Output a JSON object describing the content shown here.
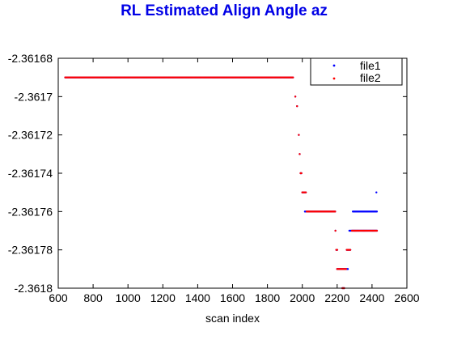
{
  "chart_data": {
    "type": "scatter",
    "title": "RL Estimated Align Angle az",
    "xlabel": "scan index",
    "ylabel": "",
    "xlim": [
      600,
      2600
    ],
    "ylim": [
      -2.3618,
      -2.36168
    ],
    "xticks": [
      600,
      800,
      1000,
      1200,
      1400,
      1600,
      1800,
      2000,
      2200,
      2400,
      2600
    ],
    "xtick_labels": [
      "600",
      "800",
      "1000",
      "1200",
      "1400",
      "1600",
      "1800",
      "2000",
      "2200",
      "2400",
      "2600"
    ],
    "yticks": [
      -2.36168,
      -2.3617,
      -2.36172,
      -2.36174,
      -2.36176,
      -2.36178,
      -2.3618
    ],
    "ytick_labels": [
      "-2.36168",
      "-2.3617",
      "-2.36172",
      "-2.36174",
      "-2.36176",
      "-2.36178",
      "-2.3618"
    ],
    "grid": false,
    "legend_position": "top-right",
    "series": [
      {
        "name": "file1",
        "color": "#0000ff",
        "marker": "dot",
        "runs": [
          {
            "x": [
              640,
              1950
            ],
            "y": -2.36169
          },
          {
            "x": [
              1960,
              1965
            ],
            "y": -2.3617
          },
          {
            "x": [
              1970,
              1975
            ],
            "y": -2.361705
          },
          {
            "x": [
              1980,
              1985
            ],
            "y": -2.36172
          },
          {
            "x": [
              1985,
              1990
            ],
            "y": -2.36173
          },
          {
            "x": [
              1990,
              2000
            ],
            "y": -2.36174
          },
          {
            "x": [
              2000,
              2025
            ],
            "y": -2.36175
          },
          {
            "x": [
              2015,
              2190
            ],
            "y": -2.36176
          },
          {
            "x": [
              2190,
              2195
            ],
            "y": -2.36177
          },
          {
            "x": [
              2195,
              2205
            ],
            "y": -2.36178
          },
          {
            "x": [
              2200,
              2265
            ],
            "y": -2.36179
          },
          {
            "x": [
              2230,
              2245
            ],
            "y": -2.3618
          },
          {
            "x": [
              2255,
              2280
            ],
            "y": -2.36178
          },
          {
            "x": [
              2270,
              2430
            ],
            "y": -2.36177
          },
          {
            "x": [
              2290,
              2430
            ],
            "y": -2.36176
          },
          {
            "x": [
              2425,
              2430
            ],
            "y": -2.36175
          }
        ]
      },
      {
        "name": "file2",
        "color": "#ff0000",
        "marker": "dot",
        "runs": [
          {
            "x": [
              640,
              1950
            ],
            "y": -2.36169
          },
          {
            "x": [
              1960,
              1965
            ],
            "y": -2.3617
          },
          {
            "x": [
              1970,
              1975
            ],
            "y": -2.361705
          },
          {
            "x": [
              1980,
              1985
            ],
            "y": -2.36172
          },
          {
            "x": [
              1985,
              1990
            ],
            "y": -2.36173
          },
          {
            "x": [
              1990,
              2000
            ],
            "y": -2.36174
          },
          {
            "x": [
              2000,
              2025
            ],
            "y": -2.36175
          },
          {
            "x": [
              2025,
              2190
            ],
            "y": -2.36176
          },
          {
            "x": [
              2190,
              2195
            ],
            "y": -2.36177
          },
          {
            "x": [
              2195,
              2205
            ],
            "y": -2.36178
          },
          {
            "x": [
              2200,
              2255
            ],
            "y": -2.36179
          },
          {
            "x": [
              2230,
              2245
            ],
            "y": -2.3618
          },
          {
            "x": [
              2255,
              2280
            ],
            "y": -2.36178
          },
          {
            "x": [
              2285,
              2430
            ],
            "y": -2.36177
          }
        ]
      }
    ]
  }
}
